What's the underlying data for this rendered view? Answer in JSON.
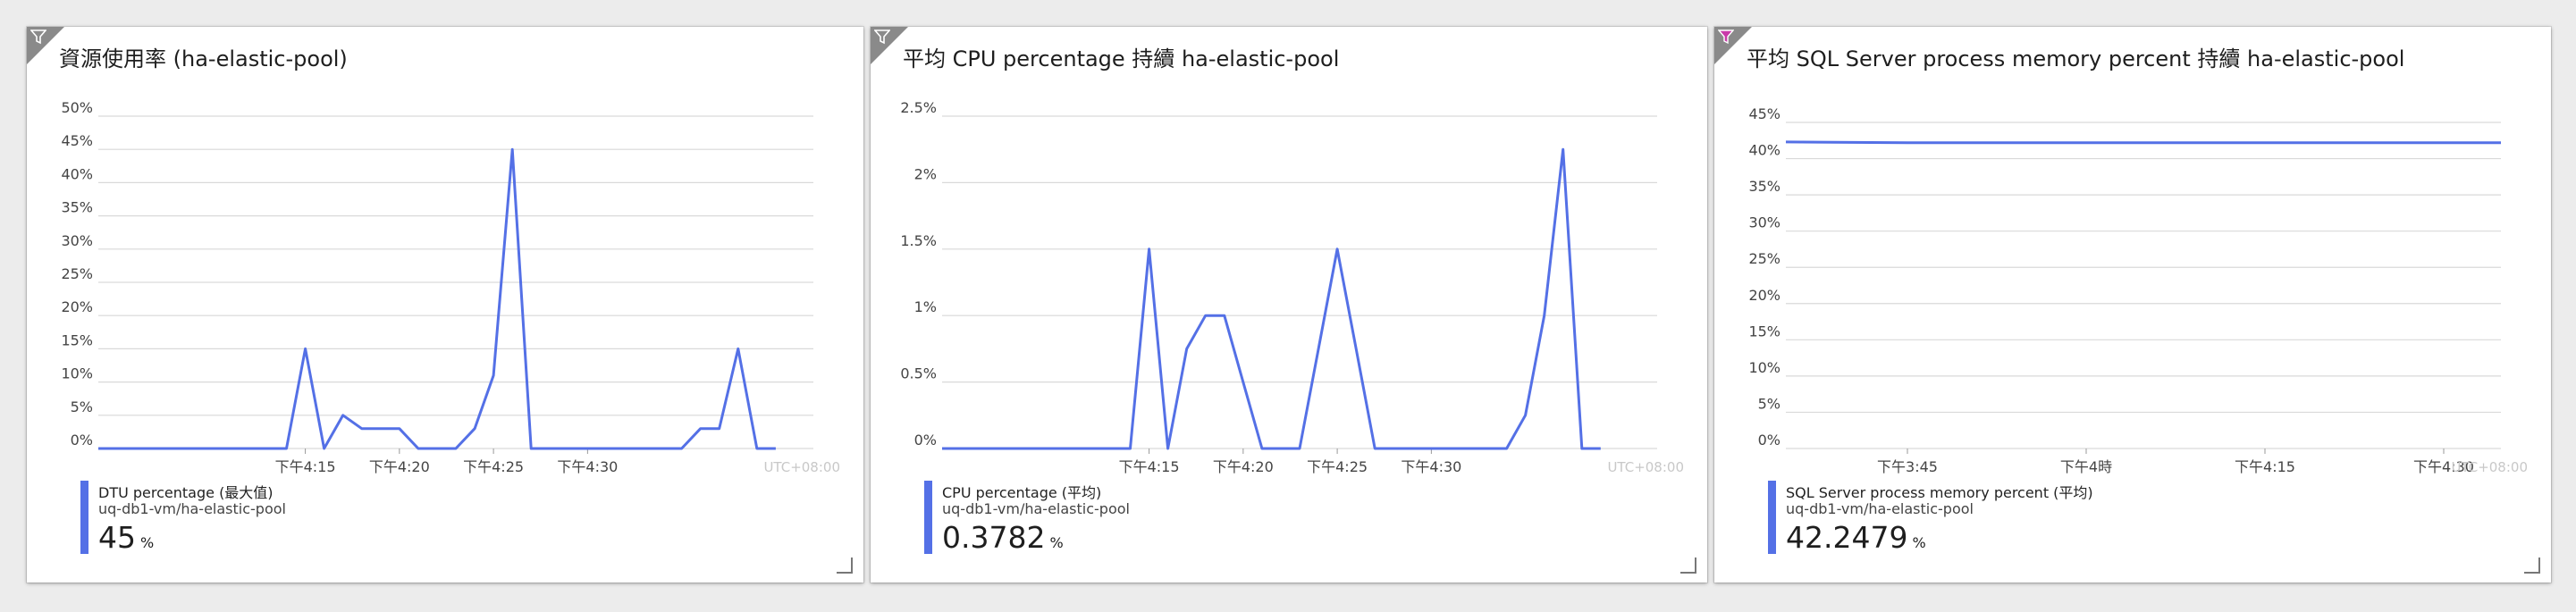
{
  "theme": {
    "line_color": "#5470e6",
    "grid_color": "#d9d9d9",
    "axis_text": "#444444",
    "utc_text": "#c8c8c8",
    "filter_active_color": "#c93aa9"
  },
  "tiles": [
    {
      "title": "資源使用率 (ha-elastic-pool)",
      "filter_icon": "filter-icon",
      "timezone": "UTC+08:00",
      "legend": {
        "name": "DTU percentage (最大值)",
        "source": "uq-db1-vm/ha-elastic-pool",
        "value": "45",
        "unit": "%"
      }
    },
    {
      "title": "平均 CPU percentage 持續 ha-elastic-pool",
      "filter_icon": "filter-icon",
      "timezone": "UTC+08:00",
      "legend": {
        "name": "CPU percentage (平均)",
        "source": "uq-db1-vm/ha-elastic-pool",
        "value": "0.3782",
        "unit": "%"
      }
    },
    {
      "title": "平均 SQL Server process memory percent 持續 ha-elastic-pool",
      "filter_icon": "filter-active-icon",
      "timezone": "UTC+08:00",
      "legend": {
        "name": "SQL Server process memory percent (平均)",
        "source": "uq-db1-vm/ha-elastic-pool",
        "value": "42.2479",
        "unit": "%"
      }
    }
  ],
  "chart_data": [
    {
      "type": "line",
      "title": "資源使用率 (ha-elastic-pool)",
      "ylim": [
        0,
        50
      ],
      "yticks": [
        0,
        5,
        10,
        15,
        20,
        25,
        30,
        35,
        40,
        45,
        50
      ],
      "ytick_labels": [
        "0%",
        "5%",
        "10%",
        "15%",
        "20%",
        "25%",
        "30%",
        "35%",
        "40%",
        "45%",
        "50%"
      ],
      "xlim": [
        4.0,
        42.0
      ],
      "xticks": [
        15,
        20,
        25,
        30
      ],
      "xtick_labels": [
        "下午4:15",
        "下午4:20",
        "下午4:25",
        "下午4:30"
      ],
      "series": [
        {
          "name": "DTU percentage (最大值)",
          "x": [
            4,
            5,
            6,
            7,
            8,
            9,
            10,
            11,
            12,
            13,
            14,
            15,
            16,
            17,
            18,
            19,
            20,
            21,
            22,
            23,
            24,
            25,
            26,
            27,
            28,
            29,
            30,
            31,
            32,
            33,
            34,
            35,
            36,
            37,
            38,
            39,
            40,
            41
          ],
          "y": [
            0,
            0,
            0,
            0,
            0,
            0,
            0,
            0,
            0,
            0,
            0,
            15,
            0,
            5,
            3,
            3,
            3,
            0,
            0,
            0,
            3,
            11,
            45,
            0,
            0,
            0,
            0,
            0,
            0,
            0,
            0,
            0,
            3,
            3,
            15,
            0,
            0,
            null
          ]
        }
      ]
    },
    {
      "type": "line",
      "title": "平均 CPU percentage 持續 ha-elastic-pool",
      "ylim": [
        0,
        2.5
      ],
      "yticks": [
        0,
        0.5,
        1,
        1.5,
        2,
        2.5
      ],
      "ytick_labels": [
        "0%",
        "0.5%",
        "1%",
        "1.5%",
        "2%",
        "2.5%"
      ],
      "xlim": [
        4.0,
        42.0
      ],
      "xticks": [
        15,
        20,
        25,
        30
      ],
      "xtick_labels": [
        "下午4:15",
        "下午4:20",
        "下午4:25",
        "下午4:30"
      ],
      "series": [
        {
          "name": "CPU percentage (平均)",
          "x": [
            4,
            5,
            6,
            7,
            8,
            9,
            10,
            11,
            12,
            13,
            14,
            15,
            16,
            17,
            18,
            19,
            20,
            21,
            22,
            23,
            24,
            25,
            26,
            27,
            28,
            29,
            30,
            31,
            32,
            33,
            34,
            35,
            36,
            37,
            38,
            39,
            40,
            41
          ],
          "y": [
            0,
            0,
            0,
            0,
            0,
            0,
            0,
            0,
            0,
            0,
            0,
            1.5,
            0,
            0.75,
            1,
            1,
            0.5,
            0,
            0,
            0,
            0.75,
            1.5,
            0.75,
            0,
            0,
            0,
            0,
            0,
            0,
            0,
            0,
            0.25,
            1,
            2.25,
            0,
            0,
            null,
            null
          ]
        }
      ]
    },
    {
      "type": "line",
      "title": "平均 SQL Server process memory percent 持續 ha-elastic-pool",
      "ylim": [
        0,
        45
      ],
      "yticks": [
        0,
        5,
        10,
        15,
        20,
        25,
        30,
        35,
        40,
        45
      ],
      "ytick_labels": [
        "0%",
        "5%",
        "10%",
        "15%",
        "20%",
        "25%",
        "30%",
        "35%",
        "40%",
        "45%"
      ],
      "xlim": [
        3.58,
        4.58
      ],
      "xticks": [
        3.75,
        4.0,
        4.25,
        4.5
      ],
      "xtick_labels": [
        "下午3:45",
        "下午4時",
        "下午4:15",
        "下午4:30"
      ],
      "series": [
        {
          "name": "SQL Server process memory percent (平均)",
          "x": [
            3.58,
            3.75,
            4.0,
            4.25,
            4.5,
            4.58
          ],
          "y": [
            42.3,
            42.2,
            42.2,
            42.2,
            42.2,
            42.2
          ]
        }
      ]
    }
  ]
}
